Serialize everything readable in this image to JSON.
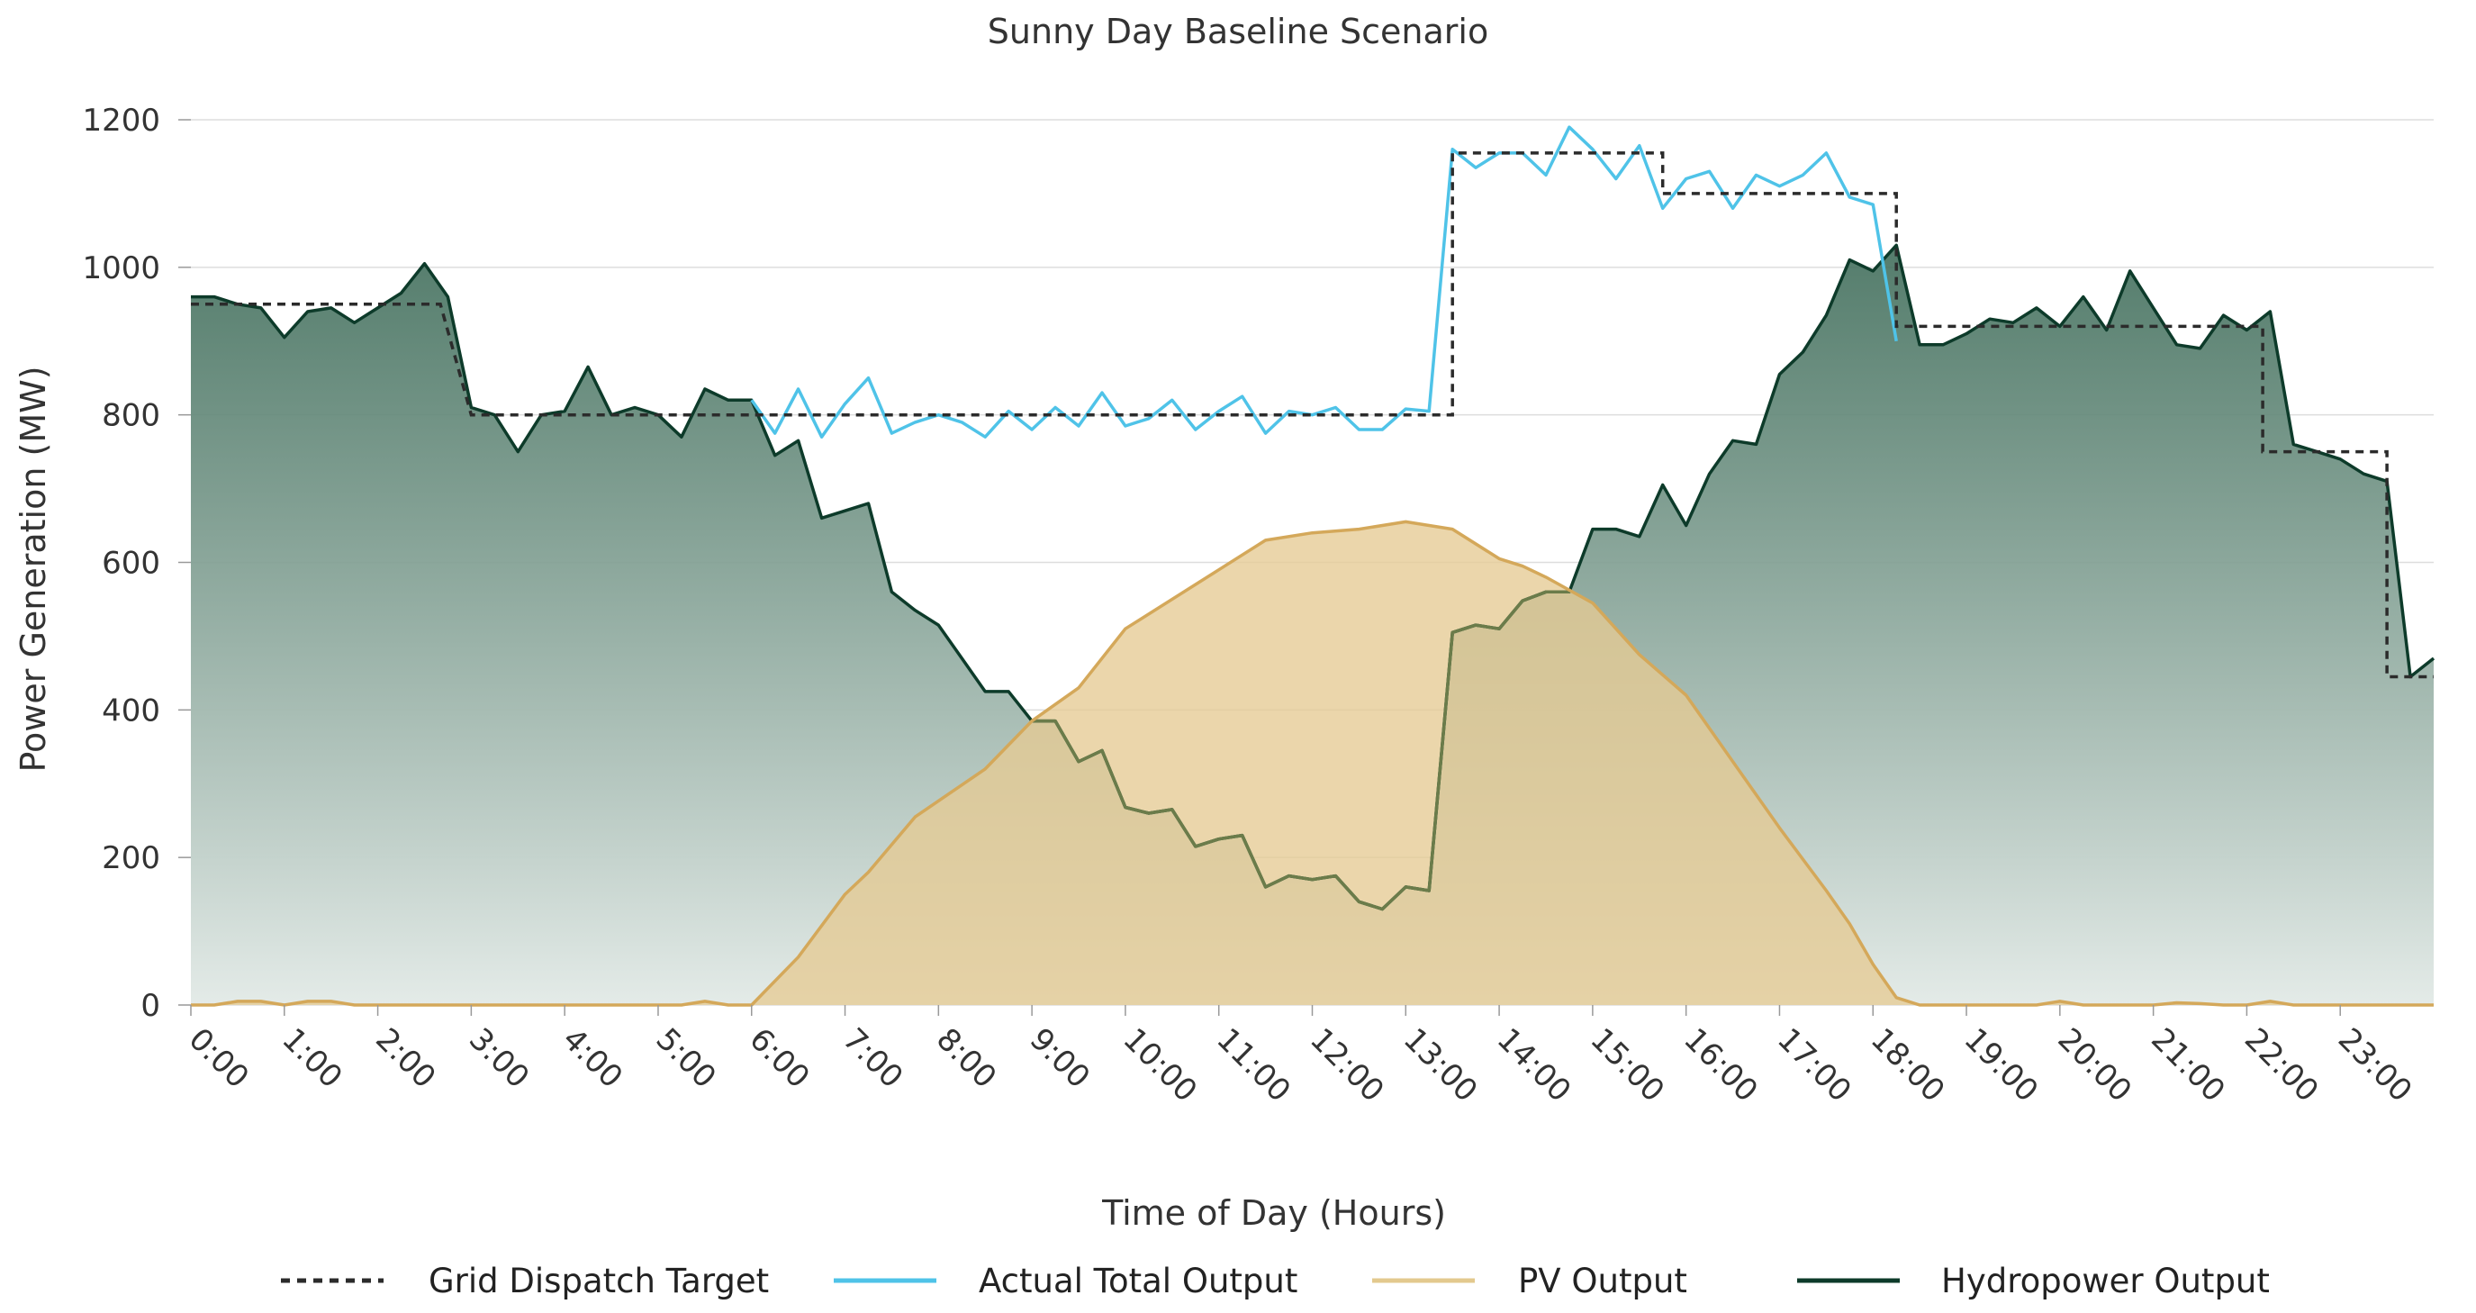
{
  "chart_data": {
    "type": "line",
    "title": "Sunny Day Baseline Scenario",
    "xlabel": "Time of Day (Hours)",
    "ylabel": "Power Generation (MW)",
    "ylim": [
      0,
      1200
    ],
    "xlim": [
      0,
      24
    ],
    "yticks": [
      0,
      200,
      400,
      600,
      800,
      1000,
      1200
    ],
    "xticks": [
      "0:00",
      "1:00",
      "2:00",
      "3:00",
      "4:00",
      "5:00",
      "6:00",
      "7:00",
      "8:00",
      "9:00",
      "10:00",
      "11:00",
      "12:00",
      "13:00",
      "14:00",
      "15:00",
      "16:00",
      "17:00",
      "18:00",
      "19:00",
      "20:00",
      "21:00",
      "22:00",
      "23:00"
    ],
    "grid": true,
    "legend_position": "bottom",
    "colors": {
      "dispatch": "#2b2b2b",
      "actual": "#4fc3e8",
      "pv": "#d4a85a",
      "pv_fill": "#e6cb93",
      "hydro": "#0d3b2a",
      "hydro_fill_top": "#3d6b58",
      "hydro_fill_bottom": "#e4ebe8",
      "pv_over_hydro_line": "#6b7c4a",
      "grid": "#dddddd"
    },
    "series": [
      {
        "name": "Grid Dispatch Target",
        "style": "dashed",
        "x": [
          0,
          2.67,
          3,
          13.5,
          13.5,
          15.75,
          15.75,
          18.25,
          18.25,
          22.17,
          22.17,
          23.5,
          23.5,
          24
        ],
        "values": [
          950,
          950,
          800,
          800,
          1155,
          1155,
          1100,
          1100,
          920,
          920,
          750,
          750,
          445,
          445
        ]
      },
      {
        "name": "Actual Total Output",
        "x": [
          6,
          6.25,
          6.5,
          6.75,
          7,
          7.25,
          7.5,
          7.75,
          8,
          8.25,
          8.5,
          8.75,
          9,
          9.25,
          9.5,
          9.75,
          10,
          10.25,
          10.5,
          10.75,
          11,
          11.25,
          11.5,
          11.75,
          12,
          12.25,
          12.5,
          12.75,
          13,
          13.25,
          13.5,
          13.75,
          14,
          14.25,
          14.5,
          14.75,
          15,
          15.25,
          15.5,
          15.75,
          16,
          16.25,
          16.5,
          16.75,
          17,
          17.25,
          17.5,
          17.75,
          18,
          18.25
        ],
        "values": [
          820,
          775,
          835,
          770,
          815,
          850,
          775,
          790,
          800,
          790,
          770,
          805,
          780,
          810,
          785,
          830,
          785,
          795,
          820,
          780,
          805,
          825,
          775,
          805,
          800,
          810,
          780,
          780,
          808,
          805,
          1160,
          1135,
          1155,
          1155,
          1125,
          1190,
          1160,
          1120,
          1165,
          1080,
          1120,
          1130,
          1080,
          1125,
          1110,
          1125,
          1155,
          1095,
          1085,
          900
        ]
      },
      {
        "name": "PV Output",
        "x": [
          0,
          0.25,
          0.5,
          0.75,
          1,
          1.25,
          1.5,
          1.75,
          2,
          5.25,
          5.5,
          5.75,
          6,
          6.5,
          7,
          7.25,
          7.75,
          8.5,
          9,
          9.5,
          10,
          11,
          11.5,
          12,
          12.5,
          13,
          13.5,
          14,
          14.25,
          14.5,
          15,
          15.5,
          16,
          16.5,
          17,
          17.5,
          17.75,
          18,
          18.25,
          18.5,
          19.75,
          20,
          20.25,
          20.5,
          21,
          21.25,
          21.5,
          21.75,
          22,
          22.25,
          22.5,
          24
        ],
        "values": [
          0,
          0,
          5,
          5,
          0,
          5,
          5,
          0,
          0,
          0,
          5,
          0,
          0,
          65,
          150,
          180,
          255,
          320,
          385,
          430,
          510,
          590,
          630,
          640,
          645,
          655,
          645,
          605,
          595,
          580,
          545,
          475,
          420,
          330,
          240,
          155,
          110,
          55,
          10,
          0,
          0,
          5,
          0,
          0,
          0,
          3,
          2,
          0,
          0,
          5,
          0,
          0
        ]
      },
      {
        "name": "Hydropower Output",
        "x": [
          0,
          0.25,
          0.5,
          0.75,
          1,
          1.25,
          1.5,
          1.75,
          2,
          2.25,
          2.5,
          2.75,
          3,
          3.25,
          3.5,
          3.75,
          4,
          4.25,
          4.5,
          4.75,
          5,
          5.25,
          5.5,
          5.75,
          6,
          6.25,
          6.5,
          6.75,
          7,
          7.25,
          7.5,
          7.75,
          8,
          8.25,
          8.5,
          8.75,
          9,
          9.25,
          9.5,
          9.75,
          10,
          10.25,
          10.5,
          10.75,
          11,
          11.25,
          11.5,
          11.75,
          12,
          12.25,
          12.5,
          12.75,
          13,
          13.25,
          13.5,
          13.75,
          14,
          14.25,
          14.5,
          14.75,
          15,
          15.25,
          15.5,
          15.75,
          16,
          16.25,
          16.5,
          16.75,
          17,
          17.25,
          17.5,
          17.75,
          18,
          18.25,
          18.5,
          18.75,
          19,
          19.25,
          19.5,
          19.75,
          20,
          20.25,
          20.5,
          20.75,
          21,
          21.25,
          21.5,
          21.75,
          22,
          22.25,
          22.5,
          22.75,
          23,
          23.25,
          23.5,
          23.75,
          24
        ],
        "values": [
          960,
          960,
          950,
          945,
          905,
          940,
          945,
          925,
          945,
          965,
          1005,
          960,
          810,
          800,
          750,
          800,
          805,
          865,
          800,
          810,
          800,
          770,
          835,
          820,
          820,
          745,
          765,
          660,
          670,
          680,
          560,
          535,
          515,
          470,
          425,
          425,
          385,
          385,
          330,
          345,
          268,
          260,
          265,
          215,
          225,
          230,
          160,
          175,
          170,
          175,
          140,
          130,
          160,
          155,
          505,
          515,
          510,
          548,
          560,
          560,
          645,
          645,
          635,
          705,
          650,
          720,
          765,
          760,
          855,
          885,
          935,
          1010,
          995,
          1030,
          895,
          895,
          910,
          930,
          925,
          945,
          920,
          960,
          915,
          995,
          945,
          895,
          890,
          935,
          915,
          940,
          760,
          750,
          740,
          720,
          710,
          445,
          470
        ]
      }
    ]
  }
}
